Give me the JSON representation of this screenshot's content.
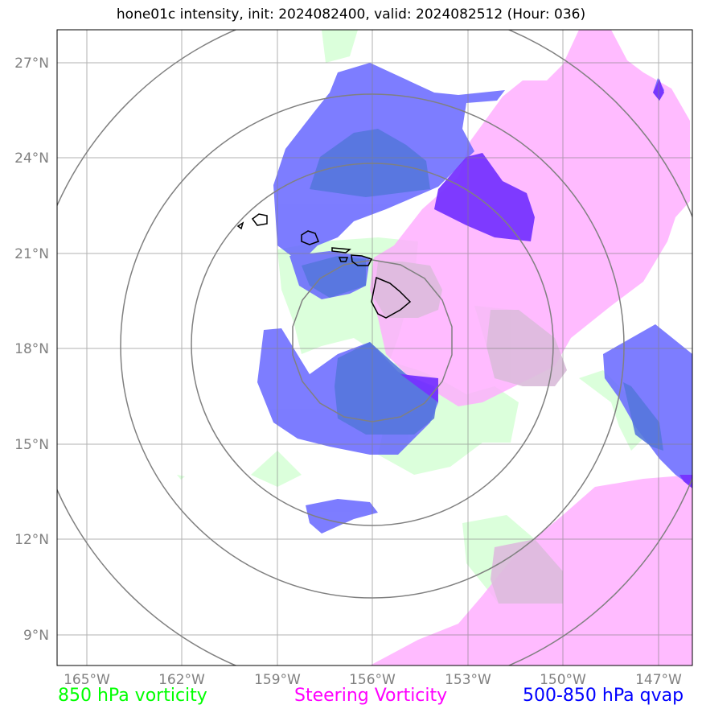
{
  "title": "hone01c intensity, init: 2024082400, valid: 2024082512 (Hour: 036)",
  "lat_labels": [
    "27°N",
    "24°N",
    "21°N",
    "18°N",
    "15°N",
    "12°N",
    "9°N"
  ],
  "lon_labels": [
    "165°W",
    "162°W",
    "159°W",
    "156°W",
    "153°W",
    "150°W",
    "147°W"
  ],
  "legend": {
    "vorticity850": "850 hPa vorticity",
    "steering": "Steering Vorticity",
    "qvap": "500-850 hPa qvap"
  },
  "colors": {
    "vorticity850": "#00ff00",
    "steering": "#ff00ff",
    "qvap": "#0000ff",
    "grid": "#808080"
  }
}
